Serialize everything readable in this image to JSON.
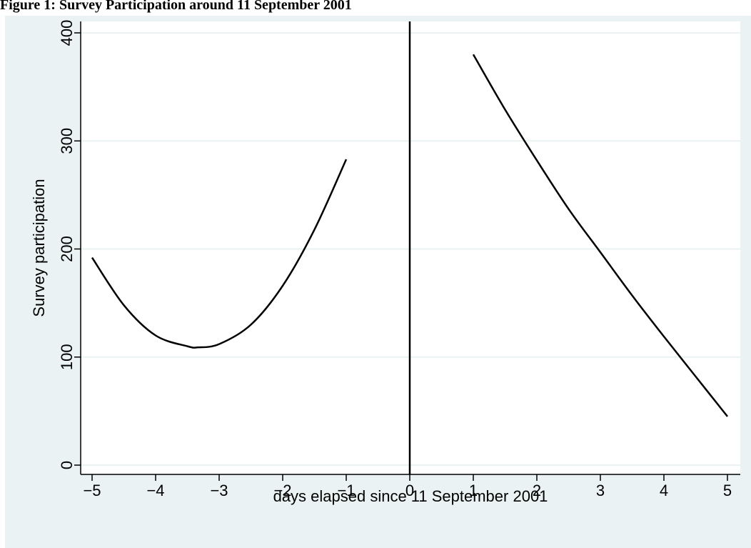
{
  "chart_data": {
    "type": "line",
    "title": "Figure 1: Survey Participation around 11 September 2001",
    "xlabel": "days elapsed since 11 September 2001",
    "ylabel": "Survey participation",
    "xlim": [
      -5,
      5
    ],
    "ylim": [
      0,
      400
    ],
    "x_ticks": [
      -5,
      -4,
      -3,
      -2,
      -1,
      0,
      1,
      2,
      3,
      4,
      5
    ],
    "x_tick_labels": [
      "−5",
      "−4",
      "−3",
      "−2",
      "−1",
      "0",
      "1",
      "2",
      "3",
      "4",
      "5"
    ],
    "y_ticks": [
      0,
      100,
      200,
      300,
      400
    ],
    "y_tick_labels": [
      "0",
      "100",
      "200",
      "300",
      "400"
    ],
    "grid": "horizontal",
    "reference_line_x": 0,
    "series": [
      {
        "segment": "before",
        "x": [
          -5,
          -4.5,
          -4,
          -3.5,
          -3.33,
          -3,
          -2.5,
          -2,
          -1.5,
          -1
        ],
        "y": [
          192,
          148,
          120,
          110,
          109,
          112,
          130,
          166,
          218,
          283
        ]
      },
      {
        "segment": "after",
        "x": [
          1,
          1.5,
          2,
          2.5,
          3,
          3.5,
          4,
          4.5,
          5
        ],
        "y": [
          380,
          329,
          282,
          237,
          197,
          157,
          119,
          82,
          45
        ]
      }
    ],
    "colors": {
      "background": "#eaf2f3",
      "plot_area": "#ffffff",
      "line": "#000000",
      "grid": "#eaf2f3"
    }
  }
}
